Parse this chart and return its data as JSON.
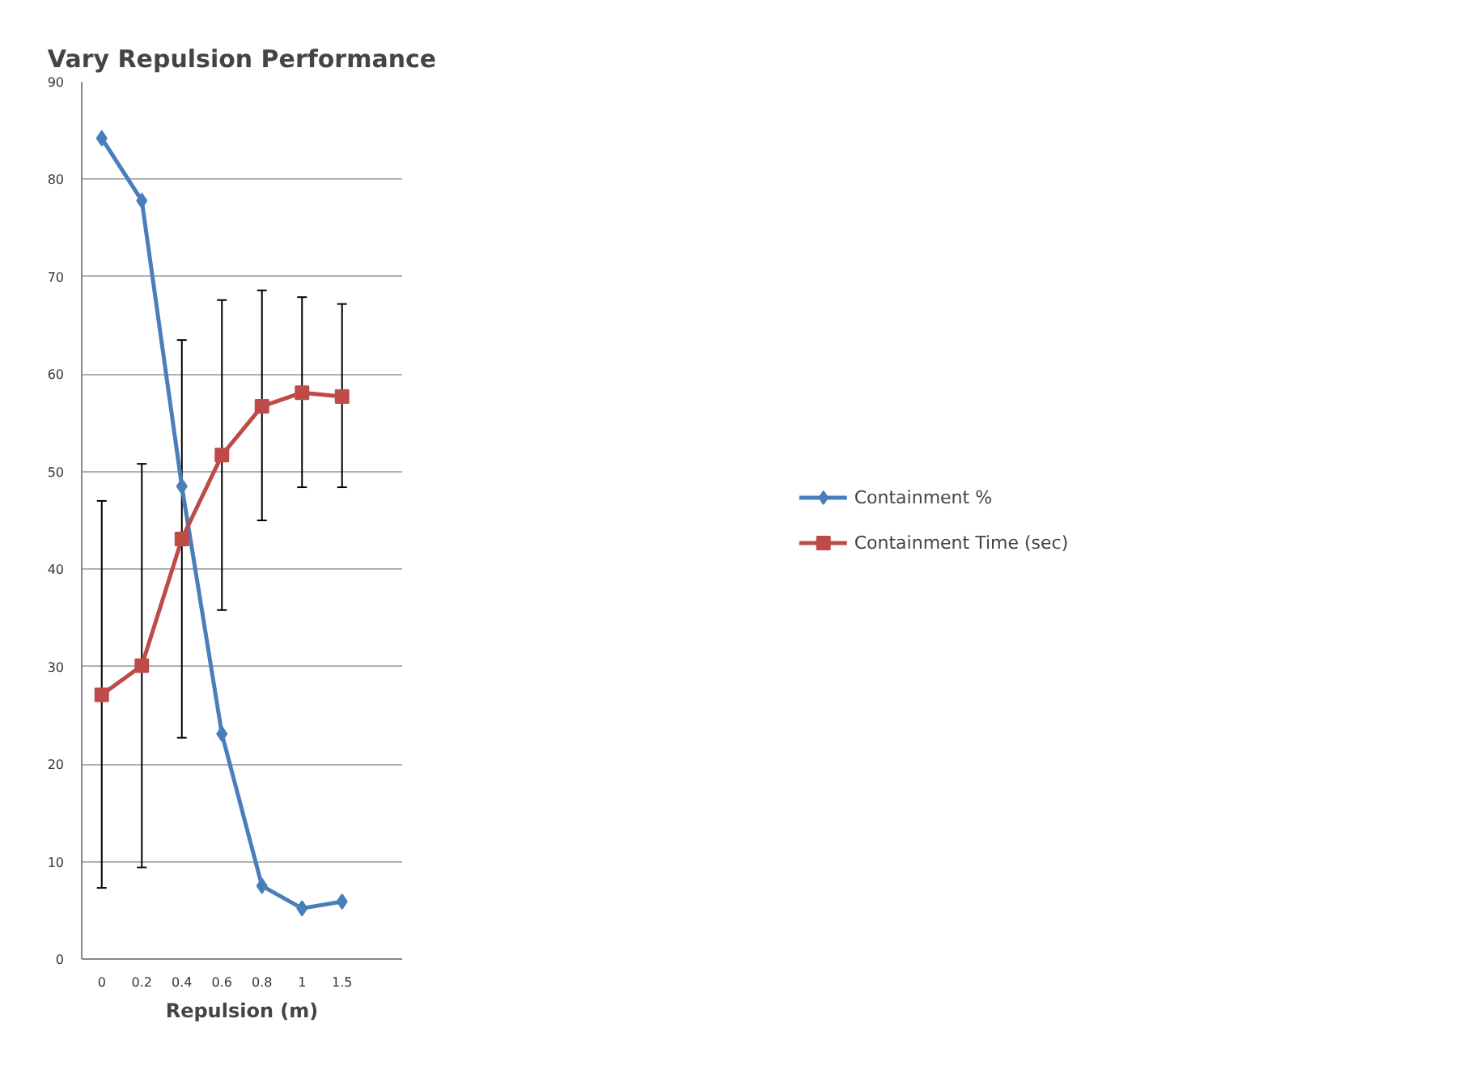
{
  "chart_data": {
    "type": "line",
    "title": "Vary Repulsion Performance",
    "xlabel": "Repulsion (m)",
    "categories": [
      "0",
      "0.2",
      "0.4",
      "0.6",
      "0.8",
      "1",
      "1.5",
      null
    ],
    "ylim": [
      0,
      90
    ],
    "yticks": [
      0,
      10,
      20,
      30,
      40,
      50,
      60,
      70,
      80,
      90
    ],
    "grid": "y",
    "legend": "right",
    "series": [
      {
        "name": "Containment %",
        "color": "#4a7ebb",
        "marker": "diamond",
        "values": [
          84.2,
          77.8,
          48.5,
          23.1,
          7.5,
          5.2,
          5.9,
          null
        ]
      },
      {
        "name": "Containment Time (sec)",
        "color": "#be4b48",
        "marker": "square",
        "values": [
          27.1,
          30.1,
          43.1,
          51.7,
          56.7,
          58.1,
          57.7,
          null
        ],
        "errors": [
          [
            7.3,
            47.0
          ],
          [
            9.4,
            50.8
          ],
          [
            22.7,
            63.5
          ],
          [
            35.8,
            67.6
          ],
          [
            45.0,
            68.6
          ],
          [
            48.4,
            67.9
          ],
          [
            48.4,
            67.2
          ],
          null
        ]
      }
    ]
  }
}
